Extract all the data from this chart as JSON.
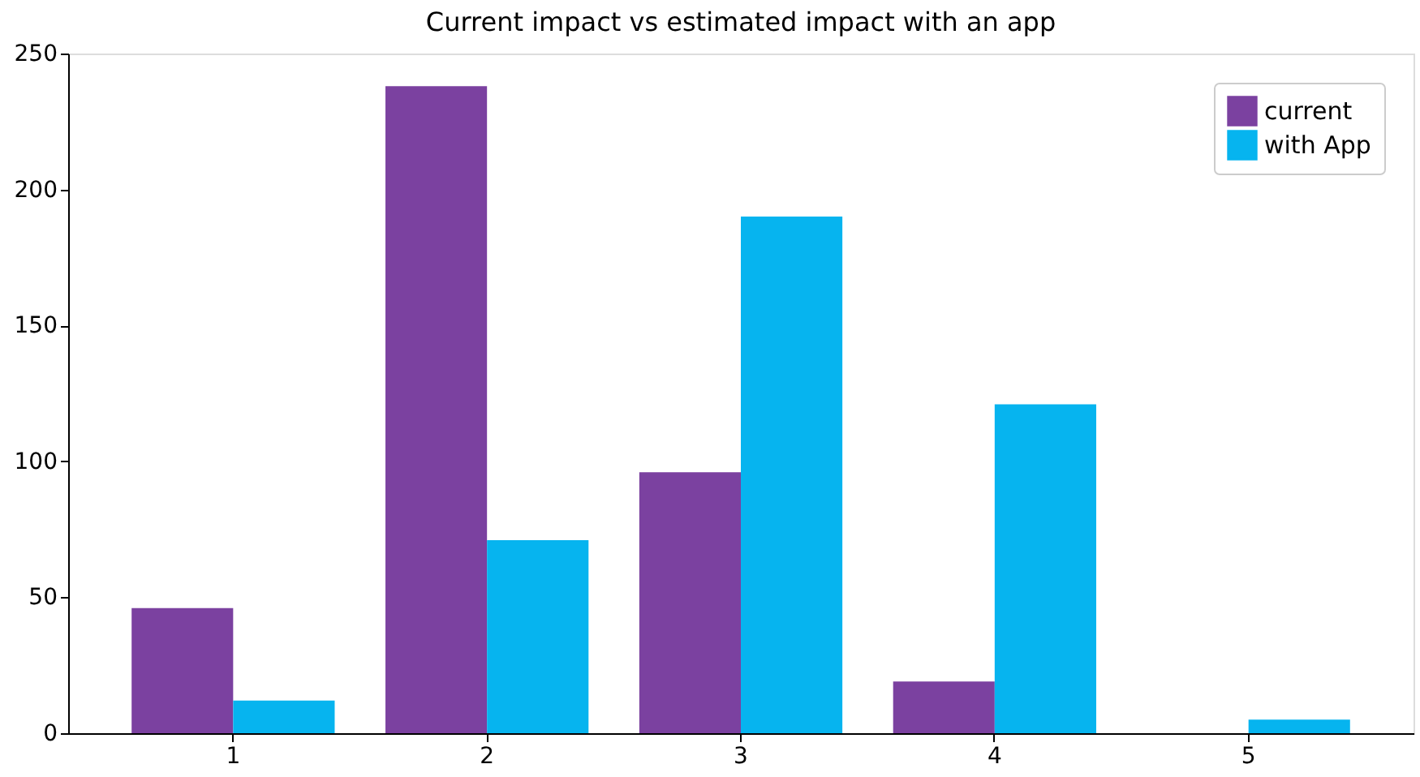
{
  "chart_data": {
    "type": "bar",
    "title": "Current impact vs estimated impact with an app",
    "categories": [
      "1",
      "2",
      "3",
      "4",
      "5"
    ],
    "series": [
      {
        "name": "current",
        "color": "#7b41a0",
        "values": [
          46,
          238,
          96,
          19,
          0
        ]
      },
      {
        "name": "with App",
        "color": "#06b4ef",
        "values": [
          12,
          71,
          190,
          121,
          5
        ]
      }
    ],
    "ylim": [
      0,
      250
    ],
    "yticks": [
      0,
      50,
      100,
      150,
      200,
      250
    ],
    "grid": false,
    "legend": "top right"
  }
}
